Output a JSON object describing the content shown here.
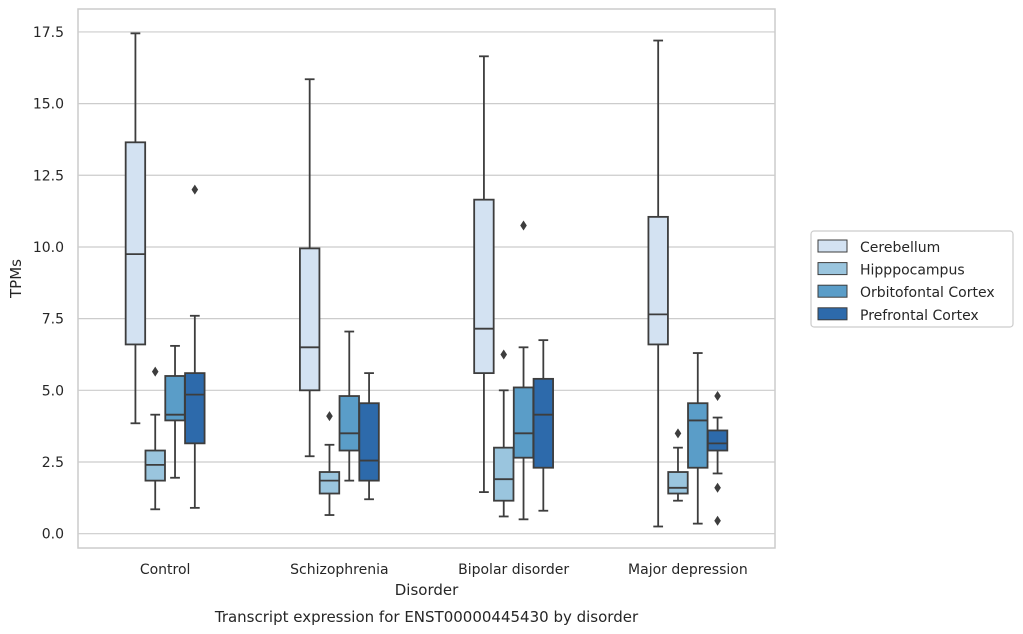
{
  "caption": "Transcript expression for ENST00000445430 by disorder",
  "chart_data": {
    "type": "boxplot",
    "xlabel": "Disorder",
    "ylabel": "TPMs",
    "ylim": [
      -0.5,
      18.3
    ],
    "yticks": [
      "0.0",
      "2.5",
      "5.0",
      "7.5",
      "10.0",
      "12.5",
      "15.0",
      "17.5"
    ],
    "grid": "horizontal",
    "legend_position": "right",
    "categories": [
      "Control",
      "Schizophrenia",
      "Bipolar disorder",
      "Major depression"
    ],
    "series": [
      {
        "name": "Cerebellum",
        "color": "#d3e2f2",
        "boxes": [
          {
            "whisker_low": 3.85,
            "q1": 6.6,
            "median": 9.75,
            "q3": 13.65,
            "whisker_high": 17.45,
            "outliers": []
          },
          {
            "whisker_low": 2.7,
            "q1": 5.0,
            "median": 6.5,
            "q3": 9.95,
            "whisker_high": 15.85,
            "outliers": []
          },
          {
            "whisker_low": 1.45,
            "q1": 5.6,
            "median": 7.15,
            "q3": 11.65,
            "whisker_high": 16.65,
            "outliers": []
          },
          {
            "whisker_low": 0.25,
            "q1": 6.6,
            "median": 7.65,
            "q3": 11.05,
            "whisker_high": 17.2,
            "outliers": []
          }
        ]
      },
      {
        "name": "Hipppocampus",
        "color": "#9ac5de",
        "boxes": [
          {
            "whisker_low": 0.85,
            "q1": 1.85,
            "median": 2.4,
            "q3": 2.9,
            "whisker_high": 4.15,
            "outliers": [
              5.65
            ]
          },
          {
            "whisker_low": 0.65,
            "q1": 1.4,
            "median": 1.85,
            "q3": 2.15,
            "whisker_high": 3.1,
            "outliers": [
              4.1
            ]
          },
          {
            "whisker_low": 0.6,
            "q1": 1.15,
            "median": 1.9,
            "q3": 3.0,
            "whisker_high": 5.0,
            "outliers": [
              6.25
            ]
          },
          {
            "whisker_low": 1.15,
            "q1": 1.4,
            "median": 1.6,
            "q3": 2.15,
            "whisker_high": 3.0,
            "outliers": [
              3.5
            ]
          }
        ]
      },
      {
        "name": "Orbitofontal Cortex",
        "color": "#5a9dc8",
        "boxes": [
          {
            "whisker_low": 1.95,
            "q1": 3.95,
            "median": 4.15,
            "q3": 5.5,
            "whisker_high": 6.55,
            "outliers": []
          },
          {
            "whisker_low": 1.85,
            "q1": 2.9,
            "median": 3.5,
            "q3": 4.8,
            "whisker_high": 7.05,
            "outliers": []
          },
          {
            "whisker_low": 0.5,
            "q1": 2.65,
            "median": 3.5,
            "q3": 5.1,
            "whisker_high": 6.5,
            "outliers": [
              10.75
            ]
          },
          {
            "whisker_low": 0.35,
            "q1": 2.3,
            "median": 3.95,
            "q3": 4.55,
            "whisker_high": 6.3,
            "outliers": []
          }
        ]
      },
      {
        "name": "Prefrontal Cortex",
        "color": "#2d6aab",
        "boxes": [
          {
            "whisker_low": 0.9,
            "q1": 3.15,
            "median": 4.85,
            "q3": 5.6,
            "whisker_high": 7.6,
            "outliers": [
              12.0
            ]
          },
          {
            "whisker_low": 1.2,
            "q1": 1.85,
            "median": 2.55,
            "q3": 4.55,
            "whisker_high": 5.6,
            "outliers": []
          },
          {
            "whisker_low": 0.8,
            "q1": 2.3,
            "median": 4.15,
            "q3": 5.4,
            "whisker_high": 6.75,
            "outliers": []
          },
          {
            "whisker_low": 2.1,
            "q1": 2.9,
            "median": 3.15,
            "q3": 3.6,
            "whisker_high": 4.05,
            "outliers": [
              4.8,
              1.6,
              0.45
            ]
          }
        ]
      }
    ]
  }
}
